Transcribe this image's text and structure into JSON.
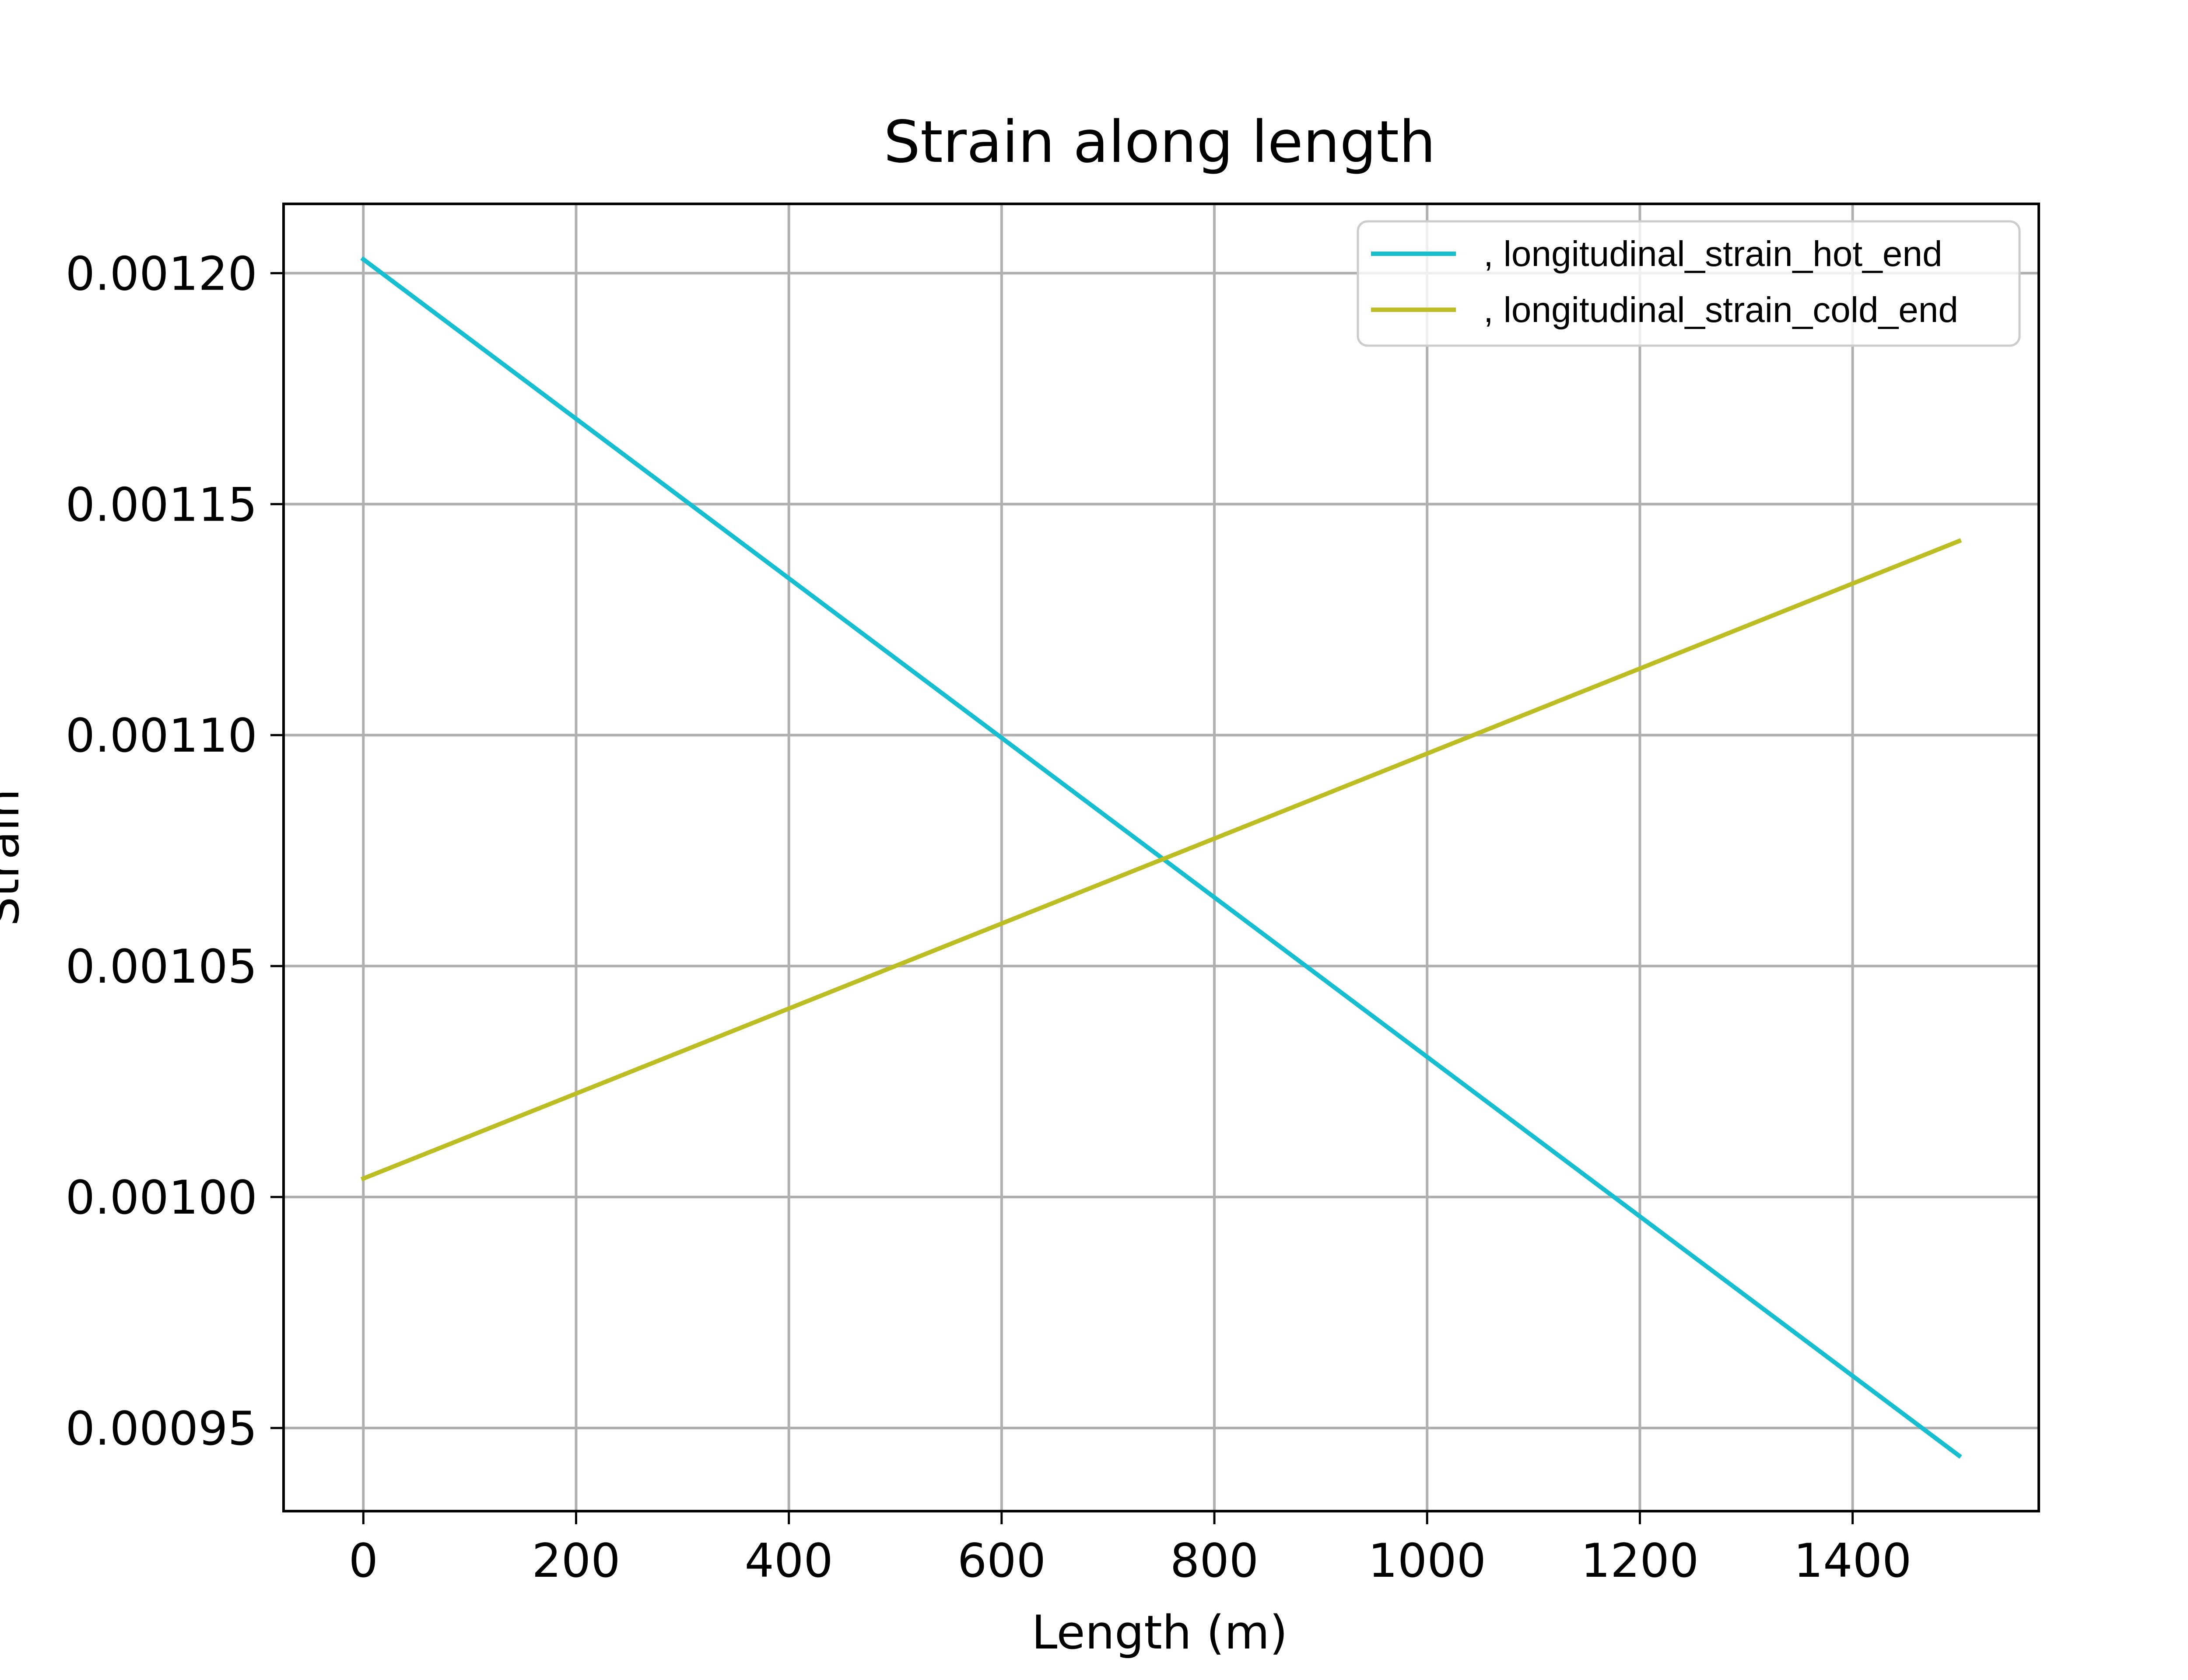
{
  "chart_data": {
    "type": "line",
    "title": "Strain along length",
    "xlabel": "Length (m)",
    "ylabel": "Strain",
    "xlim": [
      -75,
      1575
    ],
    "ylim": [
      0.000932,
      0.001215
    ],
    "grid": true,
    "legend_position": "top-right",
    "x_ticks": [
      {
        "value": 0,
        "label": "0"
      },
      {
        "value": 200,
        "label": "200"
      },
      {
        "value": 400,
        "label": "400"
      },
      {
        "value": 600,
        "label": "600"
      },
      {
        "value": 800,
        "label": "800"
      },
      {
        "value": 1000,
        "label": "1000"
      },
      {
        "value": 1200,
        "label": "1200"
      },
      {
        "value": 1400,
        "label": "1400"
      }
    ],
    "y_ticks": [
      {
        "value": 0.00095,
        "label": "0.00095"
      },
      {
        "value": 0.001,
        "label": "0.00100"
      },
      {
        "value": 0.00105,
        "label": "0.00105"
      },
      {
        "value": 0.0011,
        "label": "0.00110"
      },
      {
        "value": 0.00115,
        "label": "0.00115"
      },
      {
        "value": 0.0012,
        "label": "0.00120"
      }
    ],
    "series": [
      {
        "name": ", longitudinal_strain_hot_end",
        "color": "#17becf",
        "x": [
          0,
          1500
        ],
        "y": [
          0.001203,
          0.000944
        ]
      },
      {
        "name": ", longitudinal_strain_cold_end",
        "color": "#bcbd22",
        "x": [
          0,
          1500
        ],
        "y": [
          0.001004,
          0.001142
        ]
      }
    ]
  }
}
